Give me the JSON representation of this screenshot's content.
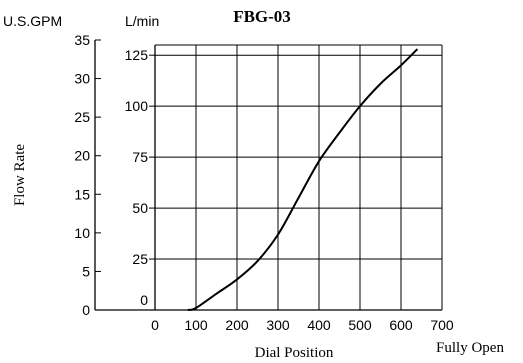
{
  "chart_data": {
    "type": "line",
    "title": "FBG-03",
    "xlabel": "Dial Position",
    "x_end_label": "Fully Open",
    "ylabel": "Flow Rate",
    "left_axis": {
      "unit": "U.S.GPM",
      "ticks": [
        0,
        5,
        10,
        15,
        20,
        25,
        30,
        35
      ]
    },
    "inner_axis": {
      "unit": "L/min",
      "ticks": [
        0,
        25,
        50,
        75,
        100,
        125
      ],
      "ylim": [
        0,
        130
      ]
    },
    "x_axis": {
      "ticks": [
        0,
        100,
        200,
        300,
        400,
        500,
        600,
        700
      ],
      "xlim": [
        0,
        700
      ]
    },
    "grid": true,
    "series": [
      {
        "x": [
          80,
          100,
          150,
          200,
          250,
          300,
          350,
          400,
          450,
          500,
          550,
          600,
          640
        ],
        "y": [
          0,
          1,
          8,
          15,
          24,
          37,
          55,
          73,
          87,
          100,
          111,
          120,
          128
        ]
      }
    ]
  }
}
